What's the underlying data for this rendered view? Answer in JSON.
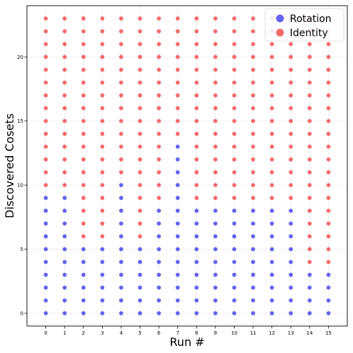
{
  "chart_data": {
    "type": "scatter",
    "title": "",
    "xlabel": "Run #",
    "ylabel": "Discovered Cosets",
    "x_ticks": [
      0,
      1,
      2,
      3,
      4,
      5,
      6,
      7,
      8,
      9,
      10,
      11,
      12,
      13,
      14,
      15
    ],
    "y_ticks": [
      0,
      5,
      10,
      15,
      20
    ],
    "xlim": [
      -1,
      16
    ],
    "ylim": [
      -1,
      24
    ],
    "grid": true,
    "legend_position": "top-right",
    "series": [
      {
        "name": "Rotation",
        "color": "#5b5bef",
        "rotation_counts": [
          10,
          10,
          6,
          6,
          11,
          6,
          9,
          14,
          9,
          9,
          9,
          9,
          9,
          9,
          4,
          4
        ]
      },
      {
        "name": "Identity",
        "color": "#f86262",
        "max_value": 23
      }
    ]
  }
}
